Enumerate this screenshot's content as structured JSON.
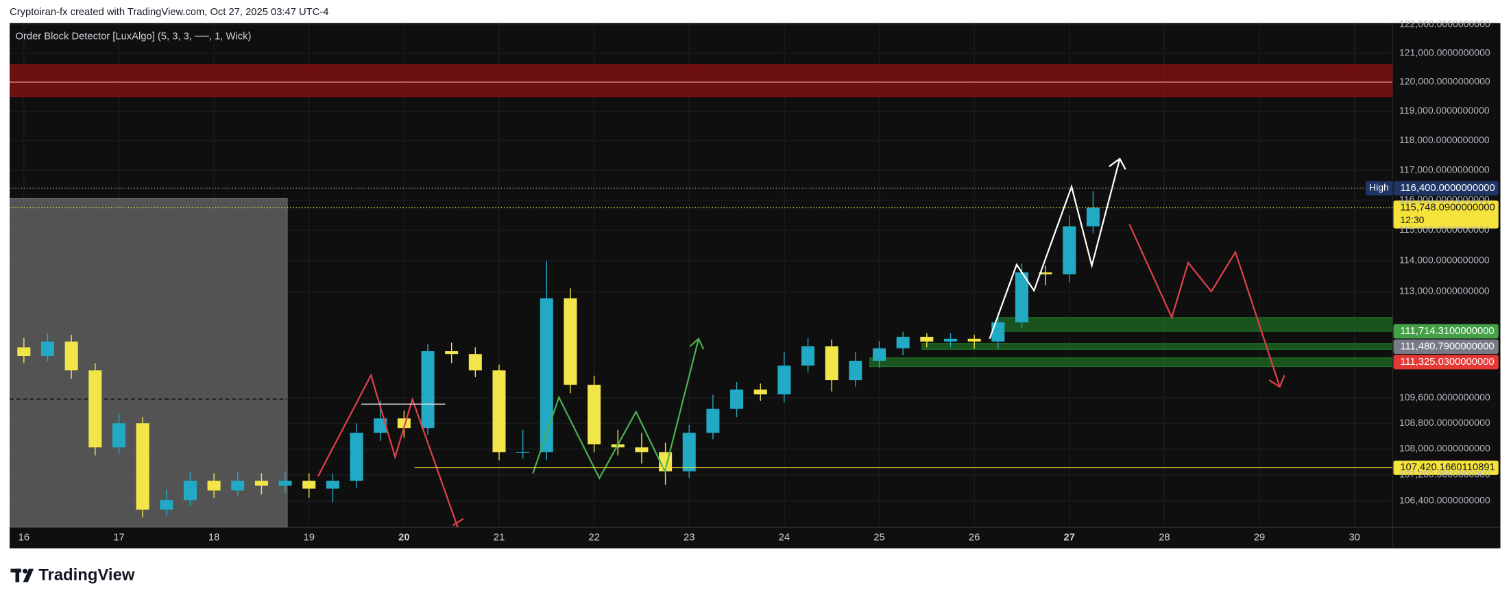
{
  "header": "Cryptoiran-fx created with TradingView.com, Oct 27, 2025 03:47 UTC-4",
  "footer": {
    "brand": "TradingView"
  },
  "chart_data": {
    "type": "candlestick",
    "title": "Order Block Detector [LuxAlgo] (5, 3, 3, ──, 1, Wick)",
    "x": [
      16,
      16.25,
      16.5,
      16.75,
      17,
      17.25,
      17.5,
      17.75,
      18,
      18.25,
      18.5,
      18.75,
      19,
      19.25,
      19.5,
      19.75,
      20,
      20.25,
      20.5,
      20.75,
      21,
      21.25,
      21.5,
      21.75,
      22,
      22.25,
      22.5,
      22.75,
      23,
      23.25,
      23.5,
      23.75,
      24,
      24.25,
      24.5,
      24.75,
      25,
      25.25,
      25.5,
      25.75,
      26,
      26.25,
      26.5,
      26.75,
      27,
      27.25
    ],
    "open": [
      111200,
      110925,
      111385,
      110466,
      108054,
      108803,
      106135,
      106428,
      107017,
      106722,
      107017,
      106869,
      107017,
      106781,
      107017,
      108503,
      108953,
      108653,
      111077,
      110986,
      110466,
      107905,
      107905,
      112777,
      110010,
      108144,
      108054,
      107905,
      107312,
      108503,
      109255,
      109859,
      109707,
      110619,
      111231,
      110162,
      110772,
      111169,
      111537,
      111385,
      111476,
      111385,
      112001,
      113620,
      113558,
      115133
    ],
    "high": [
      111500,
      111650,
      111600,
      110700,
      109100,
      109000,
      106750,
      107300,
      107250,
      107300,
      107250,
      107300,
      107250,
      107250,
      108800,
      109500,
      109200,
      111300,
      111350,
      111200,
      110650,
      108600,
      113994,
      113100,
      110300,
      108600,
      108500,
      108200,
      108750,
      109700,
      110100,
      110050,
      111050,
      111500,
      111450,
      111050,
      111400,
      111700,
      111650,
      111650,
      111600,
      112300,
      113900,
      113850,
      115500,
      116300
    ],
    "low": [
      110700,
      110750,
      110200,
      107800,
      107850,
      105900,
      105950,
      106250,
      106500,
      106550,
      106600,
      106650,
      106500,
      106350,
      106800,
      108250,
      108350,
      108450,
      110700,
      110250,
      107650,
      107700,
      107650,
      109750,
      107900,
      107800,
      107550,
      106900,
      107100,
      108300,
      109000,
      109500,
      109450,
      110400,
      109800,
      109950,
      110550,
      110950,
      111200,
      111200,
      111150,
      111150,
      111800,
      113200,
      113300,
      114900
    ],
    "close": [
      110925,
      111385,
      110466,
      108054,
      108803,
      106135,
      106428,
      107017,
      106722,
      107017,
      106869,
      107017,
      106781,
      107017,
      108503,
      108953,
      108653,
      111077,
      110986,
      110466,
      107905,
      107905,
      112777,
      110010,
      108144,
      108054,
      107905,
      107312,
      108503,
      109255,
      109859,
      109707,
      110619,
      111231,
      110162,
      110772,
      111169,
      111537,
      111385,
      111476,
      111385,
      112001,
      113620,
      113558,
      115133,
      115748.09
    ],
    "up_color": "#22a9c4",
    "down_color": "#f2e54a",
    "xlim": [
      15.85,
      30.4
    ],
    "xticks": [
      16,
      17,
      18,
      19,
      20,
      21,
      22,
      23,
      24,
      25,
      26,
      27,
      28,
      29,
      30
    ],
    "xticks_bold": [
      20,
      27
    ],
    "ylim": [
      105600,
      122050
    ],
    "log_scale": true,
    "grid": true,
    "yticks": [
      {
        "value": 122000,
        "label": "122,000.0000000000"
      },
      {
        "value": 121000,
        "label": "121,000.0000000000"
      },
      {
        "value": 120000,
        "label": "120,000.0000000000"
      },
      {
        "value": 119000,
        "label": "119,000.0000000000"
      },
      {
        "value": 118000,
        "label": "118,000.0000000000"
      },
      {
        "value": 117000,
        "label": "117,000.0000000000"
      },
      {
        "value": 116000,
        "label": "116,000.0000000000"
      },
      {
        "value": 115000,
        "label": "115,000.0000000000"
      },
      {
        "value": 114000,
        "label": "114,000.0000000000"
      },
      {
        "value": 113000,
        "label": "113,000.0000000000"
      },
      {
        "value": 109600,
        "label": "109,600.0000000000"
      },
      {
        "value": 108800,
        "label": "108,800.0000000000"
      },
      {
        "value": 108000,
        "label": "108,000.0000000000"
      },
      {
        "value": 107200,
        "label": "107,200.0000000000"
      },
      {
        "value": 106400,
        "label": "106,400.0000000000"
      }
    ],
    "zones": [
      {
        "from": 15.85,
        "to": 18.77,
        "top": 116060,
        "mid": 109560,
        "mid_style": "dashed",
        "color": "#6b6b6b"
      },
      {
        "from": 15.85,
        "top": 120594,
        "bottom": 119500,
        "mid": 120000,
        "mid_style": "solid",
        "color": "#8c1010"
      },
      {
        "from": 26.25,
        "top": 112155,
        "bottom": 111714,
        "color": "#1f6b24"
      },
      {
        "from": 25.45,
        "top": 111322,
        "bottom": 111138,
        "color": "#1f6b24"
      },
      {
        "from": 24.9,
        "top": 110862,
        "bottom": 110590,
        "color": "#1f6b24"
      }
    ],
    "levels": [
      {
        "name": "High",
        "value": 116400,
        "label": "116,400.0000000000",
        "color": "#1e3566",
        "line": "dotted"
      },
      {
        "value": 115748.09,
        "label": "115,748.0900000000",
        "countdown": "12:30",
        "color": "#f5e23a",
        "line": "dotted"
      },
      {
        "value": 111714.31,
        "label": "111,714.3100000000",
        "color": "#43a047"
      },
      {
        "value": 111480.79,
        "label": "111,480.7900000000",
        "color": "#787b86"
      },
      {
        "value": 111325.03,
        "label": "111,325.0300000000",
        "color": "#e53935"
      },
      {
        "value": 107420.1660110891,
        "label": "107,420.1660110891",
        "color": "#f5e23a",
        "line": "solid",
        "from": 20.11
      }
    ]
  }
}
